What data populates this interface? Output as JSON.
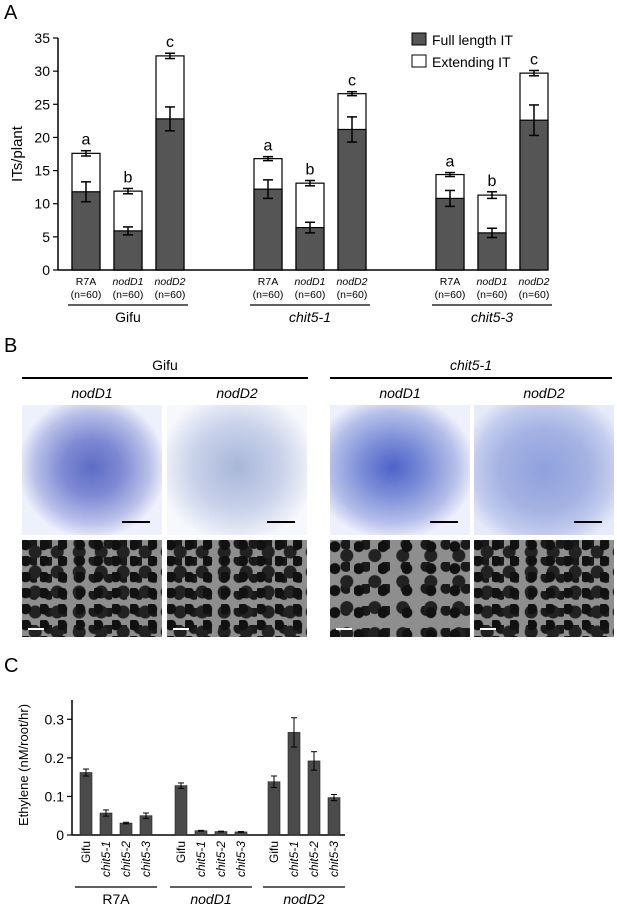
{
  "panels": {
    "a": "A",
    "b": "B",
    "c": "C"
  },
  "chart_data": [
    {
      "type": "bar",
      "stacked": true,
      "ylabel": "ITs/plant",
      "ylim": [
        0,
        35
      ],
      "yticks": [
        0,
        5,
        10,
        15,
        20,
        25,
        30,
        35
      ],
      "legend": {
        "placement": "top-right",
        "entries": [
          "Full length IT",
          "Extending IT"
        ]
      },
      "groups": [
        {
          "label": "Gifu",
          "italic": false,
          "bars": [
            {
              "strain": "R7A",
              "strain_italic": false,
              "n": "(n=60)",
              "full": 11.8,
              "full_err": 1.5,
              "total": 17.6,
              "total_err": 0.4,
              "letter": "a"
            },
            {
              "strain": "nodD1",
              "strain_italic": true,
              "n": "(n=60)",
              "full": 5.9,
              "full_err": 0.6,
              "total": 11.9,
              "total_err": 0.4,
              "letter": "b"
            },
            {
              "strain": "nodD2",
              "strain_italic": true,
              "n": "(n=60)",
              "full": 22.8,
              "full_err": 1.8,
              "total": 32.3,
              "total_err": 0.4,
              "letter": "c"
            }
          ]
        },
        {
          "label": "chit5-1",
          "italic": true,
          "bars": [
            {
              "strain": "R7A",
              "strain_italic": false,
              "n": "(n=60)",
              "full": 12.2,
              "full_err": 1.4,
              "total": 16.8,
              "total_err": 0.3,
              "letter": "a"
            },
            {
              "strain": "nodD1",
              "strain_italic": true,
              "n": "(n=60)",
              "full": 6.4,
              "full_err": 0.8,
              "total": 13.1,
              "total_err": 0.4,
              "letter": "b"
            },
            {
              "strain": "nodD2",
              "strain_italic": true,
              "n": "(n=60)",
              "full": 21.2,
              "full_err": 1.9,
              "total": 26.6,
              "total_err": 0.3,
              "letter": "c"
            }
          ]
        },
        {
          "label": "chit5-3",
          "italic": true,
          "bars": [
            {
              "strain": "R7A",
              "strain_italic": false,
              "n": "(n=60)",
              "full": 10.8,
              "full_err": 1.2,
              "total": 14.4,
              "total_err": 0.3,
              "letter": "a"
            },
            {
              "strain": "nodD1",
              "strain_italic": true,
              "n": "(n=60)",
              "full": 5.6,
              "full_err": 0.7,
              "total": 11.3,
              "total_err": 0.5,
              "letter": "b"
            },
            {
              "strain": "nodD2",
              "strain_italic": true,
              "n": "(n=60)",
              "full": 22.6,
              "full_err": 2.3,
              "total": 29.7,
              "total_err": 0.4,
              "letter": "c"
            }
          ]
        }
      ]
    },
    {
      "type": "bar",
      "ylabel": "Ethylene (nM/root/hr)",
      "ylim": [
        0,
        0.35
      ],
      "yticks": [
        "0",
        "0.1",
        "0.2",
        "0.3"
      ],
      "groups": [
        {
          "label": "R7A",
          "italic": false,
          "bars": [
            {
              "line": "Gifu",
              "italic": false,
              "value": 0.162,
              "err": 0.009
            },
            {
              "line": "chit5-1",
              "italic": true,
              "value": 0.057,
              "err": 0.008
            },
            {
              "line": "chit5-2",
              "italic": true,
              "value": 0.031,
              "err": 0.002
            },
            {
              "line": "chit5-3",
              "italic": true,
              "value": 0.05,
              "err": 0.007
            }
          ]
        },
        {
          "label": "nodD1",
          "italic": true,
          "bars": [
            {
              "line": "Gifu",
              "italic": false,
              "value": 0.128,
              "err": 0.007
            },
            {
              "line": "chit5-1",
              "italic": true,
              "value": 0.011,
              "err": 0.001
            },
            {
              "line": "chit5-2",
              "italic": true,
              "value": 0.009,
              "err": 0.001
            },
            {
              "line": "chit5-3",
              "italic": true,
              "value": 0.008,
              "err": 0.001
            }
          ]
        },
        {
          "label": "nodD2",
          "italic": true,
          "bars": [
            {
              "line": "Gifu",
              "italic": false,
              "value": 0.138,
              "err": 0.015
            },
            {
              "line": "chit5-1",
              "italic": true,
              "value": 0.266,
              "err": 0.038
            },
            {
              "line": "chit5-2",
              "italic": true,
              "value": 0.192,
              "err": 0.024
            },
            {
              "line": "chit5-3",
              "italic": true,
              "value": 0.097,
              "err": 0.008
            }
          ]
        }
      ]
    }
  ],
  "panel_b": {
    "groups": [
      "Gifu",
      "chit5-1"
    ],
    "columns": [
      "nodD1",
      "nodD2",
      "nodD1",
      "nodD2"
    ]
  }
}
